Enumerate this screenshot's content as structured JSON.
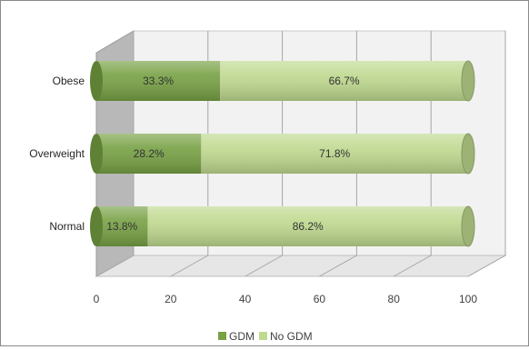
{
  "chart_data": {
    "type": "bar",
    "stacked": true,
    "percent": true,
    "orientation": "horizontal",
    "style": "3d-cylinder",
    "categories": [
      "Obese",
      "Overweight",
      "Normal"
    ],
    "series": [
      {
        "name": "GDM",
        "values": [
          33.3,
          28.2,
          13.8
        ],
        "labels": [
          "33.3%",
          "28.2%",
          "13.8%"
        ],
        "color": "#77a144"
      },
      {
        "name": "No GDM",
        "values": [
          66.7,
          71.8,
          86.2
        ],
        "labels": [
          "66.7%",
          "71.8%",
          "86.2%"
        ],
        "color": "#bfd98f"
      }
    ],
    "xlim": [
      0,
      100
    ],
    "xticks": [
      "0",
      "20",
      "40",
      "60",
      "80",
      "100"
    ],
    "grid": true,
    "legend_position": "bottom",
    "title": "",
    "xlabel": "",
    "ylabel": ""
  }
}
